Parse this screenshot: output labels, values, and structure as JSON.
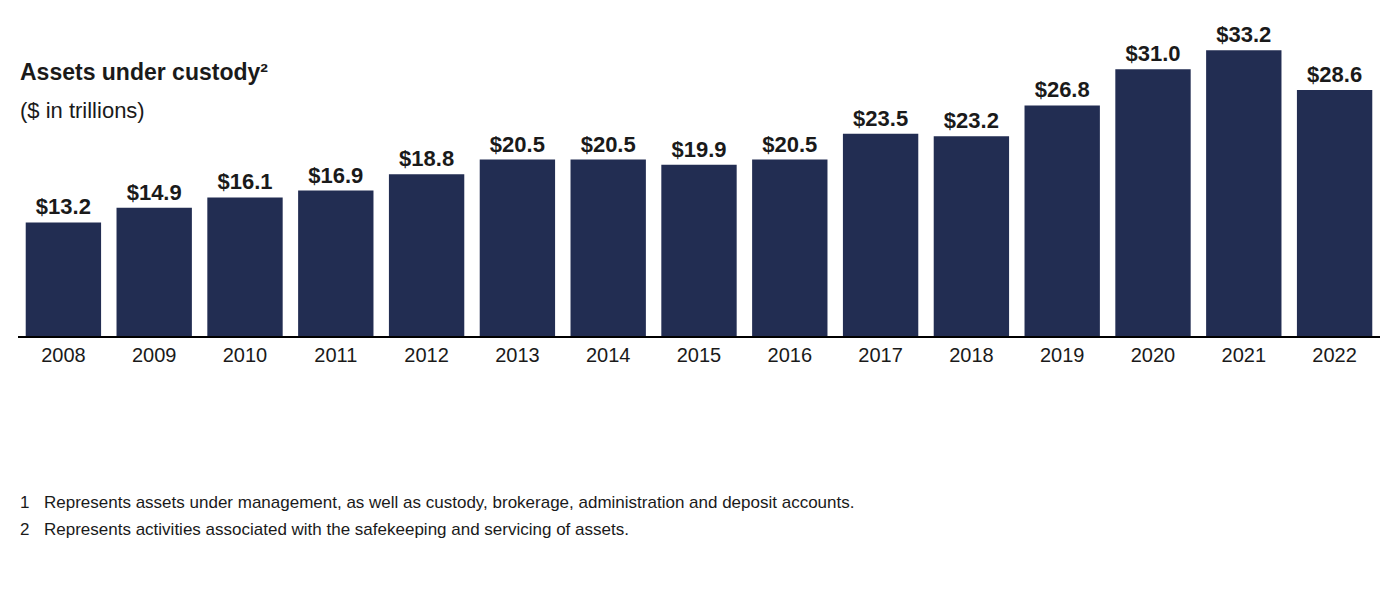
{
  "chart_data": {
    "type": "bar",
    "title": "Assets under custody²",
    "subtitle": "($ in trillions)",
    "categories": [
      "2008",
      "2009",
      "2010",
      "2011",
      "2012",
      "2013",
      "2014",
      "2015",
      "2016",
      "2017",
      "2018",
      "2019",
      "2020",
      "2021",
      "2022"
    ],
    "values": [
      13.2,
      14.9,
      16.1,
      16.9,
      18.8,
      20.5,
      20.5,
      19.9,
      20.5,
      23.5,
      23.2,
      26.8,
      31.0,
      33.2,
      28.6
    ],
    "value_labels": [
      "$13.2",
      "$14.9",
      "$16.1",
      "$16.9",
      "$18.8",
      "$20.5",
      "$20.5",
      "$19.9",
      "$20.5",
      "$23.5",
      "$23.2",
      "$26.8",
      "$31.0",
      "$33.2",
      "$28.6"
    ],
    "color": "#222d52",
    "ylim": [
      0,
      38
    ],
    "grid": false,
    "data_labels": true,
    "tick_labels": "x",
    "footnotes": [
      {
        "mark": "1",
        "text": "Represents assets under management, as well as custody, brokerage, administration and deposit accounts."
      },
      {
        "mark": "2",
        "text": "Represents activities associated with the safekeeping and servicing of assets."
      }
    ]
  }
}
